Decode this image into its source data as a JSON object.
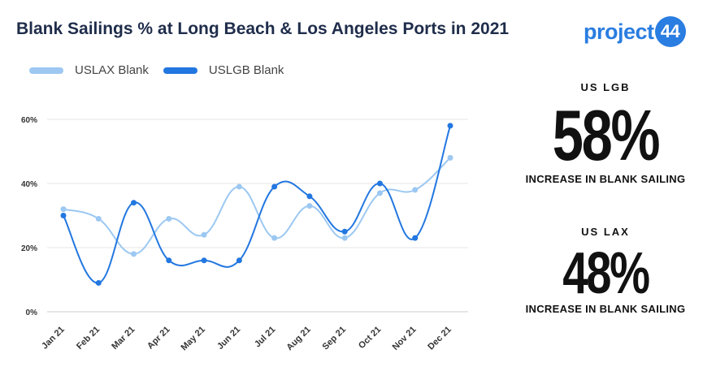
{
  "header": {
    "title": "Blank Sailings % at Long Beach & Los Angeles Ports in 2021",
    "logo_text": "project",
    "logo_badge": "44"
  },
  "colors": {
    "uslax": "#9cc8f2",
    "uslgb": "#2277e0",
    "grid": "#e6e6e6",
    "brand": "#2a7de1"
  },
  "stats": [
    {
      "label": "US LGB",
      "value": "58%",
      "caption": "INCREASE IN BLANK SAILING"
    },
    {
      "label": "US LAX",
      "value": "48%",
      "caption": "INCREASE IN BLANK SAILING"
    }
  ],
  "chart_data": {
    "type": "line",
    "title": "Blank Sailings % at Long Beach & Los Angeles Ports in 2021",
    "categories": [
      "Jan 21",
      "Feb 21",
      "Mar 21",
      "Apr 21",
      "May 21",
      "Jun 21",
      "Jul 21",
      "Aug 21",
      "Sep 21",
      "Oct 21",
      "Nov 21",
      "Dec 21"
    ],
    "series": [
      {
        "name": "USLAX Blank",
        "color": "#9cc8f2",
        "values": [
          32,
          29,
          18,
          29,
          24,
          39,
          23,
          33,
          23,
          37,
          38,
          48
        ]
      },
      {
        "name": "USLGB Blank",
        "color": "#2277e0",
        "values": [
          30,
          9,
          34,
          16,
          16,
          16,
          39,
          36,
          25,
          40,
          23,
          58
        ]
      }
    ],
    "yticks": [
      "0%",
      "20%",
      "40%",
      "60%"
    ],
    "ytick_values": [
      0,
      20,
      40,
      60
    ],
    "ylim": [
      0,
      60
    ],
    "grid": true,
    "legend_position": "top-left",
    "smooth": true
  }
}
